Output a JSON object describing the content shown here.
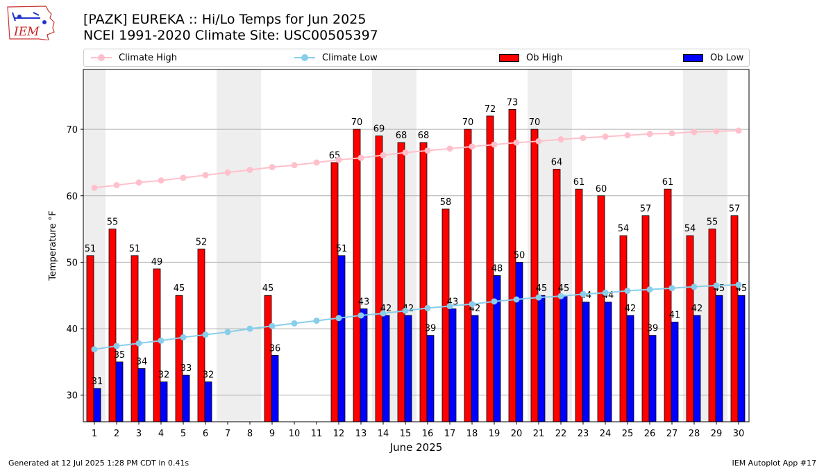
{
  "header": {
    "title_line1": "[PAZK] EUREKA :: Hi/Lo Temps for Jun 2025",
    "title_line2": "NCEI 1991-2020 Climate Site: USC00505397"
  },
  "logo": {
    "text": "IEM",
    "icon": "iem-iowa-logo"
  },
  "footer": {
    "left": "Generated at 12 Jul 2025 1:28 PM CDT in 0.41s",
    "right": "IEM Autoplot App #17"
  },
  "legend": {
    "climate_high": "Climate High",
    "climate_low": "Climate Low",
    "ob_high": "Ob High",
    "ob_low": "Ob Low"
  },
  "colors": {
    "ob_high": "#ff0000",
    "ob_low": "#0000ff",
    "climate_high": "#ffc0cb",
    "climate_low": "#87ceeb",
    "weekend_shade": "#eeeeee",
    "grid": "#b0b0b0"
  },
  "chart_data": {
    "type": "bar",
    "xlabel": "June 2025",
    "ylabel": "Temperature °F",
    "ylim": [
      26,
      79
    ],
    "yticks": [
      30,
      40,
      50,
      60,
      70
    ],
    "grid": "y",
    "legend_position": "top",
    "categories": [
      "1",
      "2",
      "3",
      "4",
      "5",
      "6",
      "7",
      "8",
      "9",
      "10",
      "11",
      "12",
      "13",
      "14",
      "15",
      "16",
      "17",
      "18",
      "19",
      "20",
      "21",
      "22",
      "23",
      "24",
      "25",
      "26",
      "27",
      "28",
      "29",
      "30"
    ],
    "shaded_day_ranges": [
      [
        1,
        1
      ],
      [
        7,
        8
      ],
      [
        14,
        15
      ],
      [
        21,
        22
      ],
      [
        28,
        29
      ]
    ],
    "series": [
      {
        "name": "Ob High",
        "kind": "bar",
        "values": [
          51,
          55,
          51,
          49,
          45,
          52,
          null,
          null,
          45,
          null,
          null,
          65,
          70,
          69,
          68,
          68,
          58,
          70,
          72,
          73,
          70,
          64,
          61,
          60,
          54,
          57,
          61,
          54,
          55,
          57
        ],
        "labels": [
          "51",
          "55",
          "51",
          "49",
          "45",
          "52",
          "",
          "",
          "45",
          "",
          "",
          "65",
          "70",
          "69",
          "68",
          "68",
          "58",
          "70",
          "72",
          "73",
          "70",
          "64",
          "61",
          "60",
          "54",
          "57",
          "61",
          "54",
          "55",
          "57"
        ]
      },
      {
        "name": "Ob Low",
        "kind": "bar",
        "values": [
          31,
          35,
          34,
          32,
          33,
          32,
          null,
          null,
          36,
          null,
          null,
          51,
          43,
          42,
          42,
          39,
          43,
          42,
          48,
          50,
          45,
          45,
          44,
          44,
          42,
          39,
          41,
          42,
          45,
          45
        ],
        "labels": [
          "31",
          "35",
          "34",
          "32",
          "33",
          "32",
          "",
          "",
          "36",
          "",
          "",
          "51",
          "43",
          "42",
          "42",
          "39",
          "43",
          "42",
          "48",
          "50",
          "45",
          "45",
          "44",
          "44",
          "42",
          "39",
          "41",
          "42",
          "45",
          "45"
        ]
      },
      {
        "name": "Climate High",
        "kind": "line",
        "values": [
          61.2,
          61.6,
          62.0,
          62.3,
          62.7,
          63.1,
          63.5,
          63.9,
          64.3,
          64.6,
          65.0,
          65.4,
          65.7,
          66.1,
          66.5,
          66.8,
          67.1,
          67.4,
          67.7,
          68.0,
          68.2,
          68.5,
          68.7,
          68.9,
          69.1,
          69.3,
          69.4,
          69.6,
          69.7,
          69.8
        ]
      },
      {
        "name": "Climate Low",
        "kind": "line",
        "values": [
          36.9,
          37.4,
          37.8,
          38.2,
          38.7,
          39.1,
          39.5,
          40.0,
          40.4,
          40.8,
          41.2,
          41.6,
          42.0,
          42.3,
          42.7,
          43.1,
          43.4,
          43.7,
          44.1,
          44.4,
          44.7,
          44.9,
          45.2,
          45.4,
          45.7,
          45.9,
          46.1,
          46.3,
          46.5,
          46.6
        ]
      }
    ]
  }
}
